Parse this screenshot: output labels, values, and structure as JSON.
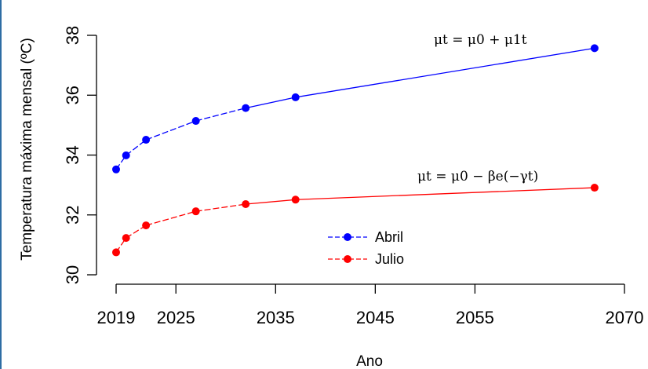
{
  "chart_data": {
    "type": "line",
    "xlabel": "Ano",
    "ylabel": "Temperatura máxima mensal (ºC)",
    "xlim": [
      2019,
      2070
    ],
    "ylim": [
      30,
      38
    ],
    "x_ticks": [
      2019,
      2025,
      2035,
      2045,
      2055,
      2070
    ],
    "y_ticks": [
      30,
      32,
      34,
      36,
      38
    ],
    "grid": false,
    "legend_position": "bottom-center",
    "series": [
      {
        "name": "Abril",
        "color": "#0000ff",
        "equation": "μt = μ0 + μ1t",
        "x": [
          2019,
          2020,
          2022,
          2027,
          2032,
          2037,
          2067
        ],
        "y": [
          33.52,
          33.99,
          34.51,
          35.14,
          35.57,
          35.93,
          37.57
        ]
      },
      {
        "name": "Julio",
        "color": "#ff0000",
        "equation": "μt = μ0 − βe(−γt)",
        "x": [
          2019,
          2020,
          2022,
          2027,
          2032,
          2037,
          2067
        ],
        "y": [
          30.75,
          31.23,
          31.65,
          32.12,
          32.36,
          32.51,
          32.91
        ]
      }
    ]
  }
}
